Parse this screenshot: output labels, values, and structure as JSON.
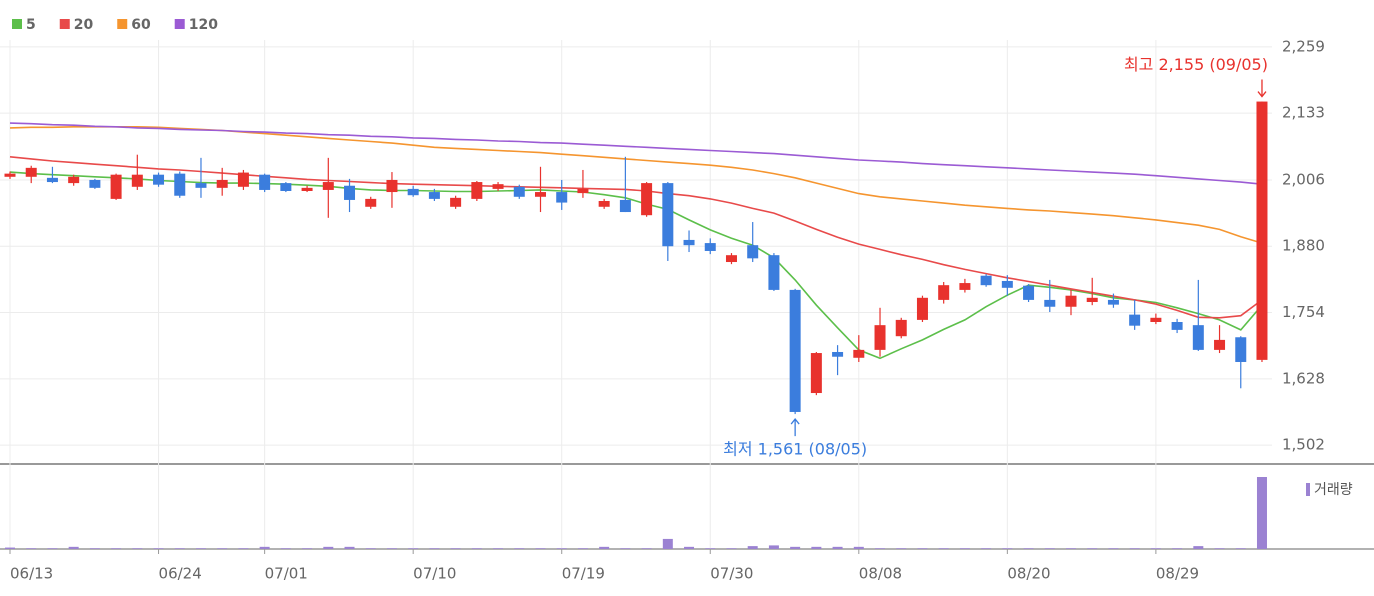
{
  "chart_data": {
    "type": "candlestick",
    "categories": [
      "06/13",
      null,
      null,
      null,
      null,
      null,
      null,
      "06/24",
      null,
      null,
      null,
      null,
      "07/01",
      null,
      null,
      null,
      null,
      null,
      null,
      "07/10",
      null,
      null,
      null,
      null,
      null,
      null,
      "07/19",
      null,
      null,
      null,
      null,
      null,
      null,
      "07/30",
      null,
      null,
      null,
      null,
      null,
      null,
      "08/08",
      null,
      null,
      null,
      null,
      null,
      null,
      "08/20",
      null,
      null,
      null,
      null,
      null,
      null,
      "08/29",
      null,
      null,
      null,
      null,
      null
    ],
    "open": [
      2012,
      2012,
      2010,
      2000,
      2006,
      1970,
      1993,
      2016,
      2018,
      2000,
      1991,
      1993,
      2016,
      2000,
      1985,
      1987,
      1995,
      1955,
      1983,
      1989,
      1983,
      1955,
      1970,
      1989,
      1993,
      1974,
      1983,
      1981,
      1955,
      1968,
      1939,
      2000,
      1892,
      1886,
      1850,
      1882,
      1863,
      1797,
      1601,
      1679,
      1668,
      1683,
      1709,
      1740,
      1778,
      1797,
      1824,
      1814,
      1805,
      1778,
      1765,
      1774,
      1778,
      1750,
      1736,
      1736,
      1730,
      1683,
      1707,
      1664
    ],
    "high": [
      2022,
      2033,
      2031,
      2016,
      2008,
      2018,
      2054,
      2020,
      2022,
      2048,
      2029,
      2025,
      2018,
      2002,
      1995,
      2048,
      2008,
      1974,
      2021,
      1995,
      1989,
      1976,
      2004,
      2002,
      1997,
      2031,
      2006,
      2025,
      1970,
      2050,
      2002,
      2002,
      1910,
      1895,
      1867,
      1926,
      1867,
      1799,
      1679,
      1692,
      1711,
      1763,
      1744,
      1786,
      1812,
      1818,
      1827,
      1825,
      1808,
      1816,
      1797,
      1820,
      1790,
      1778,
      1752,
      1742,
      1816,
      1730,
      1709,
      2155
    ],
    "low": [
      2008,
      2000,
      2000,
      1995,
      1989,
      1968,
      1987,
      1993,
      1972,
      1972,
      1976,
      1987,
      1983,
      1983,
      1983,
      1934,
      1945,
      1951,
      1953,
      1974,
      1966,
      1951,
      1966,
      1985,
      1970,
      1945,
      1949,
      1972,
      1951,
      1945,
      1936,
      1852,
      1869,
      1865,
      1846,
      1850,
      1795,
      1561,
      1597,
      1635,
      1660,
      1670,
      1705,
      1736,
      1771,
      1792,
      1803,
      1786,
      1774,
      1755,
      1749,
      1768,
      1763,
      1721,
      1732,
      1715,
      1681,
      1677,
      1610,
      1660
    ],
    "close": [
      2018,
      2029,
      2002,
      2012,
      1991,
      2016,
      2016,
      1997,
      1976,
      1991,
      2006,
      2020,
      1987,
      1985,
      1991,
      2002,
      1968,
      1970,
      2006,
      1977,
      1970,
      1972,
      2002,
      1998,
      1974,
      1983,
      1963,
      1989,
      1966,
      1945,
      2000,
      1880,
      1882,
      1871,
      1863,
      1857,
      1797,
      1565,
      1677,
      1670,
      1683,
      1730,
      1740,
      1782,
      1806,
      1810,
      1806,
      1801,
      1778,
      1765,
      1786,
      1782,
      1769,
      1729,
      1744,
      1721,
      1683,
      1702,
      1660,
      2155
    ],
    "up_color": "#e8322d",
    "down_color": "#3b7ddd",
    "series": [
      {
        "name": "5",
        "color": "#5cbf4a",
        "values": [
          2021,
          2018,
          2016,
          2014,
          2012,
          2010,
          2008,
          2005,
          2003,
          2001,
          2000,
          2000,
          1999,
          1998,
          1996,
          1994,
          1990,
          1987,
          1986,
          1986,
          1985,
          1984,
          1984,
          1985,
          1986,
          1987,
          1985,
          1983,
          1978,
          1972,
          1960,
          1950,
          1930,
          1911,
          1895,
          1882,
          1858,
          1816,
          1768,
          1725,
          1683,
          1667,
          1685,
          1702,
          1722,
          1740,
          1765,
          1787,
          1806,
          1802,
          1797,
          1790,
          1782,
          1778,
          1773,
          1763,
          1752,
          1740,
          1721,
          1768
        ]
      },
      {
        "name": "20",
        "color": "#e84a4a",
        "values": [
          2050,
          2046,
          2042,
          2039,
          2036,
          2033,
          2030,
          2027,
          2025,
          2022,
          2019,
          2016,
          2013,
          2010,
          2007,
          2005,
          2003,
          2001,
          1999,
          1998,
          1997,
          1996,
          1995,
          1994,
          1993,
          1992,
          1991,
          1990,
          1989,
          1988,
          1985,
          1980,
          1976,
          1970,
          1962,
          1952,
          1943,
          1928,
          1912,
          1897,
          1884,
          1874,
          1864,
          1855,
          1845,
          1836,
          1828,
          1820,
          1813,
          1806,
          1799,
          1792,
          1785,
          1778,
          1770,
          1758,
          1745,
          1744,
          1748,
          1778
        ]
      },
      {
        "name": "60",
        "color": "#f5952f",
        "values": [
          2105,
          2106,
          2106,
          2107,
          2107,
          2107,
          2107,
          2106,
          2104,
          2102,
          2100,
          2097,
          2094,
          2091,
          2088,
          2085,
          2082,
          2079,
          2076,
          2072,
          2068,
          2066,
          2064,
          2062,
          2060,
          2058,
          2055,
          2052,
          2049,
          2046,
          2043,
          2040,
          2037,
          2034,
          2030,
          2025,
          2018,
          2010,
          2000,
          1990,
          1980,
          1974,
          1970,
          1966,
          1962,
          1958,
          1955,
          1952,
          1949,
          1947,
          1944,
          1941,
          1938,
          1934,
          1930,
          1925,
          1920,
          1912,
          1898,
          1886
        ]
      },
      {
        "name": "120",
        "color": "#9b5bd4",
        "values": [
          2114,
          2113,
          2111,
          2110,
          2108,
          2107,
          2105,
          2104,
          2102,
          2101,
          2100,
          2098,
          2097,
          2095,
          2094,
          2092,
          2091,
          2089,
          2088,
          2086,
          2085,
          2083,
          2082,
          2080,
          2079,
          2077,
          2076,
          2074,
          2072,
          2070,
          2068,
          2066,
          2064,
          2062,
          2060,
          2058,
          2056,
          2053,
          2050,
          2047,
          2044,
          2042,
          2040,
          2037,
          2035,
          2033,
          2031,
          2029,
          2027,
          2025,
          2023,
          2021,
          2019,
          2017,
          2014,
          2011,
          2008,
          2005,
          2002,
          1998
        ]
      }
    ],
    "volume": {
      "name": "거래량",
      "color": "#9b82d2",
      "values": [
        2,
        1,
        1,
        3,
        1,
        1,
        1,
        1,
        1,
        1,
        1,
        1,
        3,
        1,
        1,
        3,
        3,
        1,
        1,
        1,
        1,
        1,
        1,
        1,
        1,
        1,
        1,
        1,
        3,
        1,
        1,
        14,
        3,
        1,
        1,
        4,
        5,
        3,
        3,
        3,
        3,
        1,
        1,
        1,
        1,
        1,
        1,
        1,
        1,
        1,
        1,
        1,
        1,
        1,
        1,
        1,
        4,
        1,
        1,
        100
      ]
    },
    "ylim": [
      1468,
      2272
    ],
    "yticks": [
      {
        "value": 1502,
        "label": "1,502"
      },
      {
        "value": 1628,
        "label": "1,628"
      },
      {
        "value": 1754,
        "label": "1,754"
      },
      {
        "value": 1880,
        "label": "1,880"
      },
      {
        "value": 2006,
        "label": "2,006"
      },
      {
        "value": 2133,
        "label": "2,133"
      },
      {
        "value": 2259,
        "label": "2,259"
      }
    ],
    "annotations": [
      {
        "text": "최고 2,155 (09/05)",
        "color": "#e8322d"
      },
      {
        "text": "최저 1,561 (08/05)",
        "color": "#3b7ddd"
      }
    ],
    "grid": true
  }
}
